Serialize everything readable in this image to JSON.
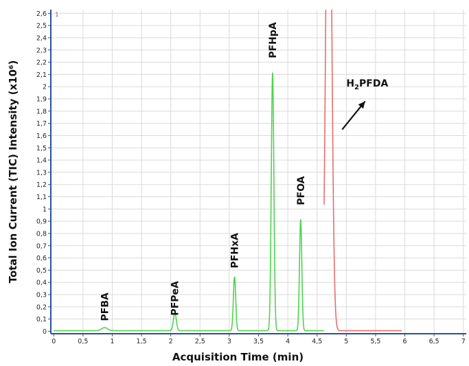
{
  "chart_data": {
    "type": "line",
    "panel_label": "1",
    "xlabel": "Acquisition Time (min)",
    "ylabel": "Total Ion Current (TIC) Intensity (x10⁶)",
    "xlim": [
      -0.05,
      7.05
    ],
    "ylim": [
      -0.02,
      2.63
    ],
    "x_ticks": [
      {
        "value": 0,
        "label": "0"
      },
      {
        "value": 0.5,
        "label": "0,5"
      },
      {
        "value": 1,
        "label": "1"
      },
      {
        "value": 1.5,
        "label": "1,5"
      },
      {
        "value": 2,
        "label": "2"
      },
      {
        "value": 2.5,
        "label": "2,5"
      },
      {
        "value": 3,
        "label": "3"
      },
      {
        "value": 3.5,
        "label": "3,5"
      },
      {
        "value": 4,
        "label": "4"
      },
      {
        "value": 4.5,
        "label": "4,5"
      },
      {
        "value": 5,
        "label": "5"
      },
      {
        "value": 5.5,
        "label": "5,5"
      },
      {
        "value": 6,
        "label": "6"
      },
      {
        "value": 6.5,
        "label": "6,5"
      },
      {
        "value": 7,
        "label": "7"
      }
    ],
    "y_ticks": [
      {
        "value": 0,
        "label": "0"
      },
      {
        "value": 0.1,
        "label": "0,1"
      },
      {
        "value": 0.2,
        "label": "0,2"
      },
      {
        "value": 0.3,
        "label": "0,3"
      },
      {
        "value": 0.4,
        "label": "0,4"
      },
      {
        "value": 0.5,
        "label": "0,5"
      },
      {
        "value": 0.6,
        "label": "0,6"
      },
      {
        "value": 0.7,
        "label": "0,7"
      },
      {
        "value": 0.8,
        "label": "0,8"
      },
      {
        "value": 0.9,
        "label": "0,9"
      },
      {
        "value": 1.0,
        "label": "1"
      },
      {
        "value": 1.1,
        "label": "1,1"
      },
      {
        "value": 1.2,
        "label": "1,2"
      },
      {
        "value": 1.3,
        "label": "1,3"
      },
      {
        "value": 1.4,
        "label": "1,4"
      },
      {
        "value": 1.5,
        "label": "1,5"
      },
      {
        "value": 1.6,
        "label": "1,6"
      },
      {
        "value": 1.7,
        "label": "1,7"
      },
      {
        "value": 1.8,
        "label": "1,8"
      },
      {
        "value": 1.9,
        "label": "1,9"
      },
      {
        "value": 2.0,
        "label": "2"
      },
      {
        "value": 2.1,
        "label": "2,1"
      },
      {
        "value": 2.2,
        "label": "2,2"
      },
      {
        "value": 2.3,
        "label": "2,3"
      },
      {
        "value": 2.4,
        "label": "2,4"
      },
      {
        "value": 2.5,
        "label": "2,5"
      },
      {
        "value": 2.6,
        "label": "2,6"
      }
    ],
    "grid": true,
    "series": [
      {
        "color": "#4fd34f",
        "x_start": 0,
        "x_end": 4.62,
        "baseline": 0.005,
        "peaks": [
          {
            "x": 0.87,
            "y": 0.025,
            "width": 0.05
          },
          {
            "x": 2.07,
            "y": 0.145,
            "width": 0.025
          },
          {
            "x": 3.09,
            "y": 0.44,
            "width": 0.02
          },
          {
            "x": 3.74,
            "y": 2.11,
            "width": 0.022
          },
          {
            "x": 4.22,
            "y": 0.91,
            "width": 0.02
          }
        ]
      },
      {
        "color": "#e86c6c",
        "x_start": 4.62,
        "x_end": 5.95,
        "baseline": 0.005,
        "peaks": [
          {
            "x": 4.7,
            "y": 5.0,
            "width": 0.045
          }
        ]
      }
    ],
    "annotations": [
      {
        "text": "PFBA",
        "x": 0.87,
        "y": 0.2
      },
      {
        "text": "PFPeA",
        "x": 2.07,
        "y": 0.27
      },
      {
        "text": "PFHxA",
        "x": 3.09,
        "y": 0.66
      },
      {
        "text": "PFHpA",
        "x": 3.74,
        "y": 2.38
      },
      {
        "text": "PFOA",
        "x": 4.22,
        "y": 1.15
      }
    ],
    "arrow_annotation": {
      "prefix": "H",
      "subscript": "2",
      "suffix": "PFDA",
      "text_x": 5.0,
      "text_y": 2.0,
      "arrow_from": [
        4.93,
        1.65
      ],
      "arrow_to": [
        5.32,
        1.88
      ]
    }
  }
}
